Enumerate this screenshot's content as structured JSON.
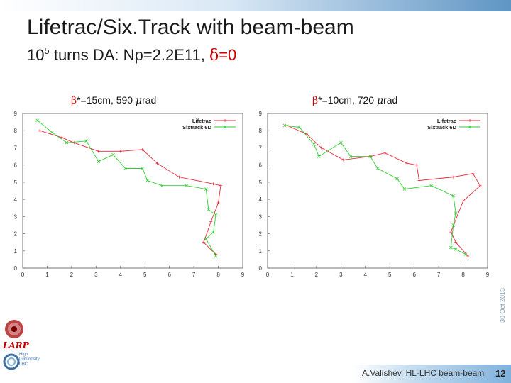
{
  "slide": {
    "title": "Lifetrac/Six.Track with beam-beam",
    "subtitle_base": "10",
    "subtitle_exp": "5",
    "subtitle_text": " turns DA: Np=2.2E11, ",
    "subtitle_delta": "δ",
    "subtitle_eq": "=0",
    "side_date": "30 Oct 2013",
    "footer": "A.Valishev, HL-LHC beam-beam",
    "page": "12",
    "logo_larp": "LARP",
    "logo_hilumi": "High Luminosity LHC"
  },
  "colors": {
    "lifetrac": "#e8283a",
    "sixtrack": "#33cc33",
    "accent": "#cc0000"
  },
  "chart_data": [
    {
      "type": "line",
      "title_beta": "β",
      "title_rest": "*=15cm, 590 ",
      "title_mu": "μ",
      "title_unit": "rad",
      "xlim": [
        0,
        9
      ],
      "ylim": [
        0,
        9
      ],
      "xticks": [
        "0",
        "1",
        "2",
        "3",
        "4",
        "5",
        "6",
        "7",
        "8",
        "9"
      ],
      "yticks": [
        "0",
        "1",
        "2",
        "3",
        "4",
        "5",
        "6",
        "7",
        "8",
        "9"
      ],
      "legend": "top-right",
      "series": [
        {
          "name": "Lifetrac",
          "color": "#e8283a",
          "marker": "plus",
          "x": [
            0.7,
            1.6,
            2.1,
            3.1,
            4.0,
            4.9,
            5.5,
            6.4,
            7.8,
            8.1,
            8.0,
            7.7,
            7.4,
            7.9
          ],
          "y": [
            8.0,
            7.6,
            7.3,
            6.8,
            6.8,
            6.9,
            6.1,
            5.3,
            4.9,
            4.8,
            3.8,
            2.7,
            1.5,
            0.8
          ]
        },
        {
          "name": "Sixtrack 6D",
          "color": "#33cc33",
          "marker": "x",
          "x": [
            0.6,
            1.2,
            1.8,
            2.6,
            3.1,
            3.7,
            4.2,
            4.9,
            5.1,
            5.7,
            6.7,
            7.5,
            7.6,
            7.9,
            7.8,
            7.5,
            7.9
          ],
          "y": [
            8.6,
            7.9,
            7.3,
            7.4,
            6.2,
            6.6,
            5.8,
            5.8,
            5.1,
            4.8,
            4.8,
            4.6,
            3.4,
            3.1,
            2.1,
            1.7,
            0.7
          ]
        }
      ]
    },
    {
      "type": "line",
      "title_beta": "β",
      "title_rest": "*=10cm, 720 ",
      "title_mu": "μ",
      "title_unit": "rad",
      "xlim": [
        0,
        9
      ],
      "ylim": [
        0,
        9
      ],
      "xticks": [
        "0",
        "1",
        "2",
        "3",
        "4",
        "5",
        "6",
        "7",
        "8",
        "9"
      ],
      "yticks": [
        "0",
        "1",
        "2",
        "3",
        "4",
        "5",
        "6",
        "7",
        "8",
        "9"
      ],
      "legend": "top-right",
      "series": [
        {
          "name": "Lifetrac",
          "color": "#e8283a",
          "marker": "plus",
          "x": [
            0.8,
            1.6,
            2.2,
            3.1,
            4.2,
            4.8,
            5.7,
            6.1,
            6.2,
            7.6,
            8.4,
            8.7,
            8.0,
            7.5,
            7.7,
            8.2
          ],
          "y": [
            8.3,
            7.8,
            7.0,
            6.3,
            6.5,
            6.7,
            6.1,
            6.0,
            5.1,
            5.3,
            5.5,
            4.8,
            3.9,
            2.1,
            1.5,
            0.7
          ]
        },
        {
          "name": "Sixtrack 6D",
          "color": "#33cc33",
          "marker": "x",
          "x": [
            0.7,
            1.3,
            1.9,
            2.1,
            3.0,
            3.4,
            4.2,
            4.5,
            5.3,
            5.6,
            6.7,
            7.6,
            7.7,
            7.6,
            7.5,
            7.7,
            8.1
          ],
          "y": [
            8.3,
            8.2,
            7.2,
            6.5,
            7.3,
            6.5,
            6.5,
            5.8,
            5.2,
            4.6,
            4.8,
            4.2,
            3.2,
            2.5,
            1.2,
            1.1,
            0.8
          ]
        }
      ]
    }
  ]
}
